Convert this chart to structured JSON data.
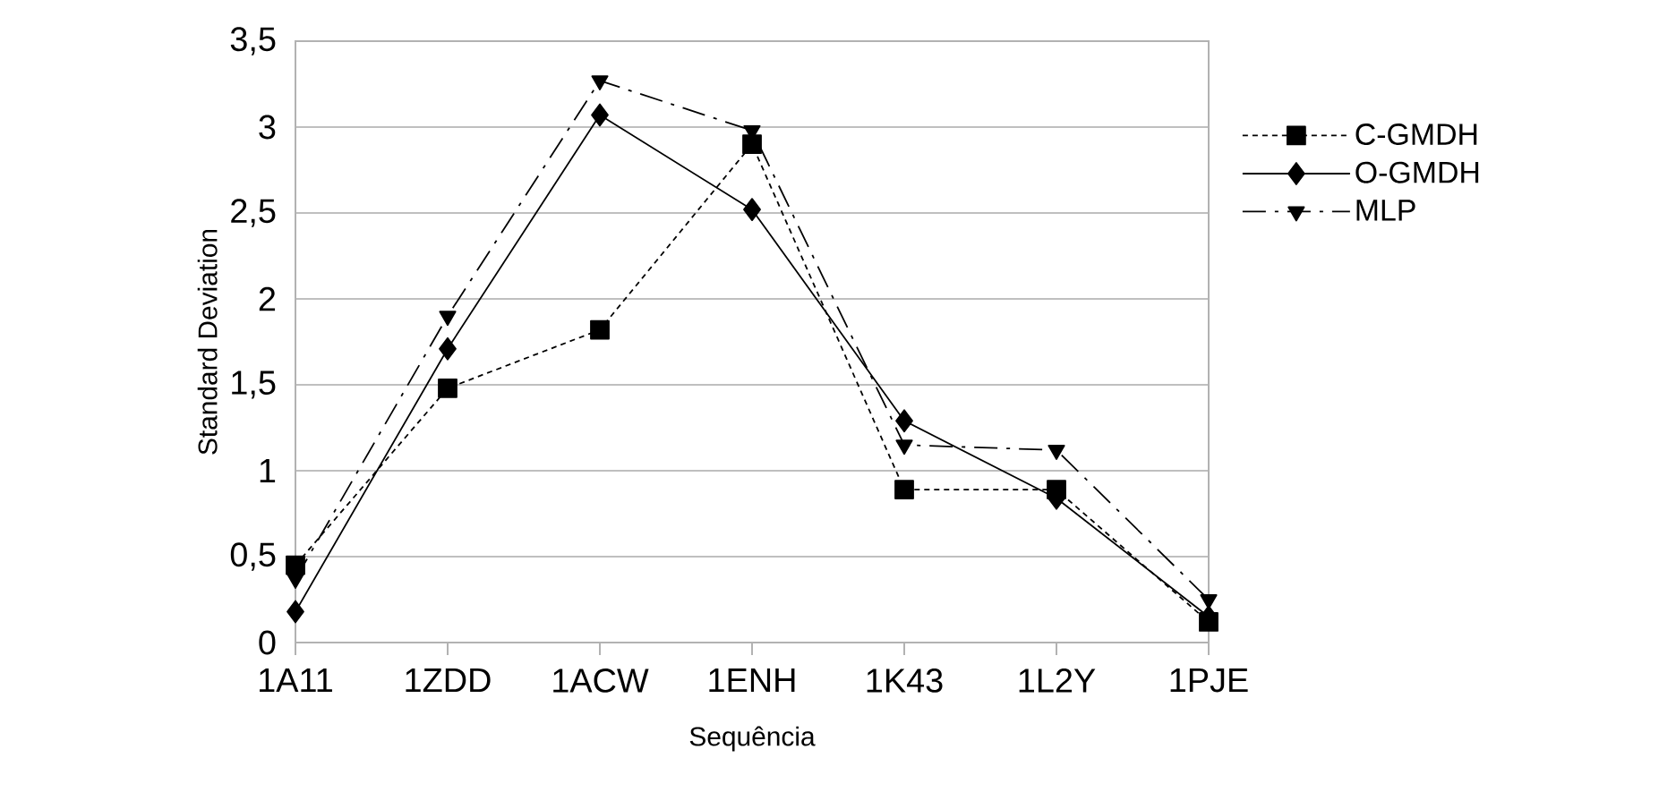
{
  "chart_data": {
    "type": "line",
    "xlabel": "Sequência",
    "ylabel": "Standard Deviation",
    "categories": [
      "1A11",
      "1ZDD",
      "1ACW",
      "1ENH",
      "1K43",
      "1L2Y",
      "1PJE"
    ],
    "ylim": [
      0,
      3.5
    ],
    "yticks": [
      0,
      {
        "value": 0.5,
        "label": "0,5"
      },
      1,
      {
        "value": 1.5,
        "label": "1,5"
      },
      2,
      {
        "value": 2.5,
        "label": "2,5"
      },
      3,
      {
        "value": 3.5,
        "label": "3,5"
      }
    ],
    "grid": "y",
    "legend": "right",
    "series": [
      {
        "name": "C-GMDH",
        "color": "#000000",
        "marker": "square",
        "line_style": "dotted",
        "values": [
          0.45,
          1.48,
          1.82,
          2.9,
          0.89,
          0.89,
          0.12
        ]
      },
      {
        "name": "O-GMDH",
        "color": "#000000",
        "marker": "diamond",
        "line_style": "solid",
        "values": [
          0.18,
          1.71,
          3.07,
          2.52,
          1.29,
          0.84,
          0.15
        ]
      },
      {
        "name": "MLP",
        "color": "#000000",
        "marker": "triangle",
        "line_style": "dashed",
        "values": [
          0.37,
          1.9,
          3.27,
          2.98,
          1.15,
          1.12,
          0.25
        ]
      }
    ]
  }
}
